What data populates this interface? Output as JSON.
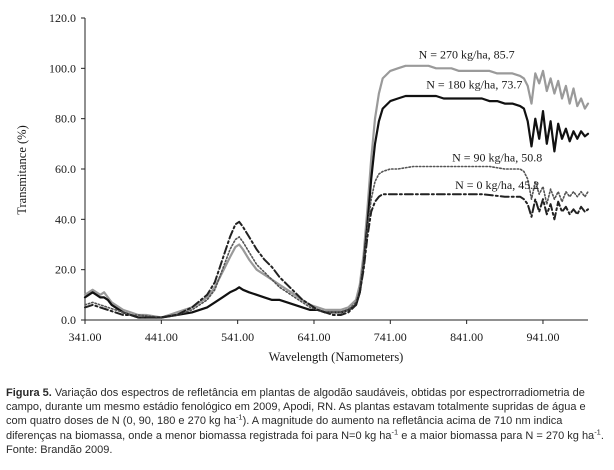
{
  "chart_data": {
    "type": "line",
    "title": "",
    "xlabel": "Wavelength (Namometers)",
    "ylabel": "Transmitance (%)",
    "xlim": [
      341,
      1000
    ],
    "ylim": [
      0,
      120
    ],
    "x_ticks": [
      341,
      441,
      541,
      641,
      741,
      841,
      941
    ],
    "x_tick_labels": [
      "341.00",
      "441.00",
      "541.00",
      "641.00",
      "741.00",
      "841.00",
      "941.00"
    ],
    "y_ticks": [
      0,
      20,
      40,
      60,
      80,
      100,
      120
    ],
    "y_tick_labels": [
      "0.0",
      "20.0",
      "40.0",
      "60.0",
      "80.0",
      "100.0",
      "120.0"
    ],
    "grid": false,
    "series": [
      {
        "name": "N = 270 kg/ha, 85.7",
        "color": "#9a9a9a",
        "style": "solid",
        "points": [
          [
            341,
            10
          ],
          [
            346,
            11
          ],
          [
            351,
            12
          ],
          [
            356,
            11
          ],
          [
            361,
            10
          ],
          [
            366,
            11
          ],
          [
            371,
            9
          ],
          [
            376,
            7
          ],
          [
            381,
            6
          ],
          [
            391,
            4
          ],
          [
            401,
            3
          ],
          [
            411,
            2
          ],
          [
            421,
            2
          ],
          [
            441,
            1
          ],
          [
            451,
            2
          ],
          [
            461,
            3
          ],
          [
            471,
            4
          ],
          [
            481,
            5
          ],
          [
            491,
            7
          ],
          [
            501,
            9
          ],
          [
            511,
            13
          ],
          [
            521,
            19
          ],
          [
            531,
            25
          ],
          [
            538,
            29
          ],
          [
            543,
            30
          ],
          [
            548,
            28
          ],
          [
            556,
            24
          ],
          [
            566,
            20
          ],
          [
            576,
            18
          ],
          [
            586,
            16
          ],
          [
            596,
            14
          ],
          [
            606,
            12
          ],
          [
            616,
            10
          ],
          [
            626,
            8
          ],
          [
            636,
            6
          ],
          [
            646,
            5
          ],
          [
            656,
            4
          ],
          [
            666,
            4
          ],
          [
            676,
            4
          ],
          [
            686,
            5
          ],
          [
            696,
            8
          ],
          [
            701,
            14
          ],
          [
            706,
            26
          ],
          [
            711,
            44
          ],
          [
            716,
            64
          ],
          [
            721,
            80
          ],
          [
            726,
            90
          ],
          [
            731,
            96
          ],
          [
            741,
            99
          ],
          [
            751,
            100
          ],
          [
            761,
            101
          ],
          [
            771,
            101
          ],
          [
            781,
            101
          ],
          [
            791,
            101
          ],
          [
            801,
            100
          ],
          [
            811,
            100
          ],
          [
            821,
            100
          ],
          [
            831,
            99
          ],
          [
            841,
            99
          ],
          [
            851,
            99
          ],
          [
            861,
            99
          ],
          [
            871,
            99
          ],
          [
            881,
            98
          ],
          [
            891,
            98
          ],
          [
            901,
            98
          ],
          [
            911,
            97
          ],
          [
            916,
            96
          ],
          [
            921,
            93
          ],
          [
            926,
            86
          ],
          [
            931,
            98
          ],
          [
            936,
            94
          ],
          [
            941,
            99
          ],
          [
            946,
            91
          ],
          [
            951,
            96
          ],
          [
            956,
            90
          ],
          [
            961,
            95
          ],
          [
            966,
            88
          ],
          [
            971,
            93
          ],
          [
            976,
            86
          ],
          [
            981,
            92
          ],
          [
            986,
            85
          ],
          [
            991,
            88
          ],
          [
            996,
            84
          ],
          [
            1000,
            86
          ]
        ]
      },
      {
        "name": "N = 180 kg/ha, 73.7",
        "color": "#111111",
        "style": "solid",
        "points": [
          [
            341,
            9
          ],
          [
            346,
            10
          ],
          [
            351,
            11
          ],
          [
            356,
            10
          ],
          [
            361,
            9
          ],
          [
            366,
            9
          ],
          [
            371,
            8
          ],
          [
            376,
            6
          ],
          [
            381,
            5
          ],
          [
            391,
            3
          ],
          [
            401,
            2
          ],
          [
            411,
            1
          ],
          [
            441,
            1
          ],
          [
            461,
            2
          ],
          [
            481,
            3
          ],
          [
            501,
            5
          ],
          [
            511,
            7
          ],
          [
            521,
            9
          ],
          [
            531,
            11
          ],
          [
            538,
            12
          ],
          [
            543,
            13
          ],
          [
            548,
            12
          ],
          [
            556,
            11
          ],
          [
            566,
            10
          ],
          [
            576,
            9
          ],
          [
            586,
            8
          ],
          [
            596,
            8
          ],
          [
            606,
            7
          ],
          [
            616,
            6
          ],
          [
            626,
            5
          ],
          [
            636,
            4
          ],
          [
            646,
            4
          ],
          [
            656,
            3
          ],
          [
            666,
            3
          ],
          [
            676,
            3
          ],
          [
            686,
            4
          ],
          [
            696,
            6
          ],
          [
            701,
            11
          ],
          [
            706,
            22
          ],
          [
            711,
            38
          ],
          [
            716,
            56
          ],
          [
            721,
            70
          ],
          [
            726,
            79
          ],
          [
            731,
            84
          ],
          [
            741,
            87
          ],
          [
            751,
            88
          ],
          [
            761,
            89
          ],
          [
            771,
            89
          ],
          [
            781,
            89
          ],
          [
            791,
            89
          ],
          [
            801,
            89
          ],
          [
            811,
            88
          ],
          [
            821,
            88
          ],
          [
            831,
            88
          ],
          [
            841,
            88
          ],
          [
            851,
            88
          ],
          [
            861,
            88
          ],
          [
            871,
            87
          ],
          [
            881,
            87
          ],
          [
            891,
            86
          ],
          [
            901,
            86
          ],
          [
            911,
            85
          ],
          [
            916,
            84
          ],
          [
            921,
            79
          ],
          [
            926,
            69
          ],
          [
            931,
            80
          ],
          [
            936,
            72
          ],
          [
            941,
            83
          ],
          [
            946,
            70
          ],
          [
            951,
            79
          ],
          [
            956,
            67
          ],
          [
            961,
            78
          ],
          [
            966,
            72
          ],
          [
            971,
            76
          ],
          [
            976,
            71
          ],
          [
            981,
            75
          ],
          [
            986,
            72
          ],
          [
            991,
            75
          ],
          [
            996,
            73
          ],
          [
            1000,
            74
          ]
        ]
      },
      {
        "name": "N = 90 kg/ha, 50.8",
        "color": "#555555",
        "style": "dotted",
        "points": [
          [
            341,
            6
          ],
          [
            351,
            7
          ],
          [
            361,
            6
          ],
          [
            371,
            5
          ],
          [
            381,
            4
          ],
          [
            391,
            3
          ],
          [
            401,
            2
          ],
          [
            411,
            2
          ],
          [
            441,
            1
          ],
          [
            461,
            2
          ],
          [
            481,
            4
          ],
          [
            501,
            8
          ],
          [
            511,
            12
          ],
          [
            521,
            20
          ],
          [
            531,
            28
          ],
          [
            538,
            32
          ],
          [
            543,
            33
          ],
          [
            548,
            31
          ],
          [
            556,
            27
          ],
          [
            566,
            22
          ],
          [
            576,
            19
          ],
          [
            586,
            16
          ],
          [
            596,
            13
          ],
          [
            606,
            11
          ],
          [
            616,
            9
          ],
          [
            626,
            7
          ],
          [
            636,
            5
          ],
          [
            646,
            4
          ],
          [
            656,
            3
          ],
          [
            666,
            3
          ],
          [
            676,
            3
          ],
          [
            686,
            4
          ],
          [
            696,
            7
          ],
          [
            701,
            12
          ],
          [
            706,
            22
          ],
          [
            711,
            36
          ],
          [
            716,
            48
          ],
          [
            721,
            55
          ],
          [
            726,
            58
          ],
          [
            731,
            59
          ],
          [
            741,
            60
          ],
          [
            751,
            60
          ],
          [
            771,
            61
          ],
          [
            791,
            61
          ],
          [
            811,
            61
          ],
          [
            831,
            61
          ],
          [
            851,
            61
          ],
          [
            871,
            61
          ],
          [
            891,
            60
          ],
          [
            901,
            60
          ],
          [
            911,
            60
          ],
          [
            916,
            59
          ],
          [
            921,
            56
          ],
          [
            926,
            48
          ],
          [
            931,
            55
          ],
          [
            936,
            50
          ],
          [
            941,
            53
          ],
          [
            946,
            46
          ],
          [
            951,
            52
          ],
          [
            956,
            48
          ],
          [
            961,
            51
          ],
          [
            966,
            47
          ],
          [
            971,
            51
          ],
          [
            976,
            49
          ],
          [
            981,
            51
          ],
          [
            986,
            49
          ],
          [
            991,
            51
          ],
          [
            996,
            49
          ],
          [
            1000,
            51
          ]
        ]
      },
      {
        "name": "N = 0 kg/ha, 45.2",
        "color": "#222222",
        "style": "dashdot",
        "points": [
          [
            341,
            5
          ],
          [
            351,
            6
          ],
          [
            361,
            5
          ],
          [
            371,
            4
          ],
          [
            381,
            3
          ],
          [
            391,
            2
          ],
          [
            401,
            2
          ],
          [
            411,
            1
          ],
          [
            441,
            1
          ],
          [
            461,
            2
          ],
          [
            481,
            5
          ],
          [
            501,
            10
          ],
          [
            511,
            15
          ],
          [
            521,
            24
          ],
          [
            531,
            33
          ],
          [
            538,
            38
          ],
          [
            543,
            39
          ],
          [
            548,
            37
          ],
          [
            556,
            33
          ],
          [
            566,
            28
          ],
          [
            576,
            24
          ],
          [
            586,
            21
          ],
          [
            596,
            17
          ],
          [
            606,
            14
          ],
          [
            616,
            11
          ],
          [
            626,
            8
          ],
          [
            636,
            6
          ],
          [
            646,
            4
          ],
          [
            656,
            3
          ],
          [
            666,
            2
          ],
          [
            676,
            2
          ],
          [
            686,
            3
          ],
          [
            696,
            6
          ],
          [
            701,
            11
          ],
          [
            706,
            20
          ],
          [
            711,
            33
          ],
          [
            716,
            43
          ],
          [
            721,
            47
          ],
          [
            726,
            49
          ],
          [
            731,
            50
          ],
          [
            741,
            50
          ],
          [
            771,
            50
          ],
          [
            801,
            50
          ],
          [
            831,
            50
          ],
          [
            861,
            50
          ],
          [
            891,
            49
          ],
          [
            911,
            49
          ],
          [
            916,
            48
          ],
          [
            921,
            46
          ],
          [
            926,
            41
          ],
          [
            931,
            48
          ],
          [
            936,
            43
          ],
          [
            941,
            48
          ],
          [
            946,
            42
          ],
          [
            951,
            46
          ],
          [
            956,
            40
          ],
          [
            961,
            47
          ],
          [
            966,
            43
          ],
          [
            971,
            45
          ],
          [
            976,
            42
          ],
          [
            981,
            44
          ],
          [
            986,
            42
          ],
          [
            991,
            45
          ],
          [
            996,
            43
          ],
          [
            1000,
            44
          ]
        ]
      }
    ],
    "annotations": [
      {
        "text": "N = 270 kg/ha, 85.7",
        "at": [
          841,
          104
        ]
      },
      {
        "text": "N = 180 kg/ha, 73.7",
        "at": [
          851,
          92
        ]
      },
      {
        "text": "N = 90 kg/ha, 50.8",
        "at": [
          881,
          63
        ]
      },
      {
        "text": "N = 0 kg/ha, 45.2",
        "at": [
          881,
          52
        ]
      }
    ]
  },
  "caption": {
    "label": "Figura 5.",
    "part1": " Variação dos espectros de refletância em plantas de algodão saudáveis, obtidas por espectrorradiometria de campo, durante um mesmo estádio fenológico em 2009, Apodi, RN. As plantas estavam totalmente supridas de água e com quatro doses de N (0, 90, 180 e 270 kg ha",
    "sup1": "-1",
    "part2": "). A magnitude do aumento na refletância acima de 710 nm indica diferenças na biomassa, onde a menor biomassa registrada foi para N=0 kg ha",
    "sup2": "-1",
    "part3": " e a maior biomassa para N = 270 kg ha",
    "sup3": "-1",
    "part4": ". Fonte: Brandão 2009."
  }
}
